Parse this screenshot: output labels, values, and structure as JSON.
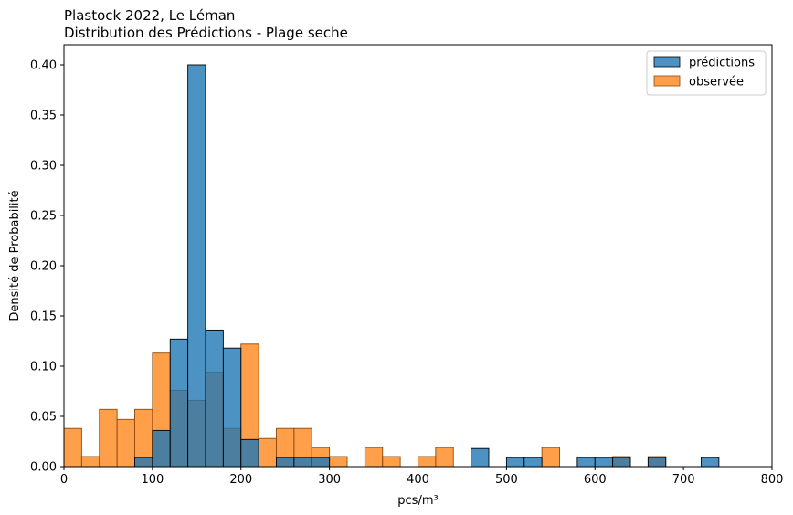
{
  "chart_data": {
    "type": "bar",
    "title": "Plastock 2022, Le Léman",
    "subtitle": "Distribution des Prédictions - Plage seche",
    "xlabel": "pcs/m³",
    "ylabel": "Densité de Probabilité",
    "xlim": [
      0,
      800
    ],
    "ylim": [
      0,
      0.42
    ],
    "x_ticks": [
      "0",
      "100",
      "200",
      "300",
      "400",
      "500",
      "600",
      "700",
      "800"
    ],
    "y_ticks": [
      "0.00",
      "0.05",
      "0.10",
      "0.15",
      "0.20",
      "0.25",
      "0.30",
      "0.35",
      "0.40"
    ],
    "grid": false,
    "legend_position": "top-right",
    "bin_width": 20,
    "series": [
      {
        "name": "observée",
        "color": "#ff7f0e",
        "bins": [
          {
            "x0": 0,
            "value": 0.038
          },
          {
            "x0": 20,
            "value": 0.01
          },
          {
            "x0": 40,
            "value": 0.057
          },
          {
            "x0": 60,
            "value": 0.047
          },
          {
            "x0": 80,
            "value": 0.057
          },
          {
            "x0": 100,
            "value": 0.113
          },
          {
            "x0": 120,
            "value": 0.076
          },
          {
            "x0": 140,
            "value": 0.066
          },
          {
            "x0": 160,
            "value": 0.094
          },
          {
            "x0": 180,
            "value": 0.038
          },
          {
            "x0": 200,
            "value": 0.122
          },
          {
            "x0": 220,
            "value": 0.028
          },
          {
            "x0": 240,
            "value": 0.038
          },
          {
            "x0": 260,
            "value": 0.038
          },
          {
            "x0": 280,
            "value": 0.019
          },
          {
            "x0": 300,
            "value": 0.01
          },
          {
            "x0": 340,
            "value": 0.019
          },
          {
            "x0": 360,
            "value": 0.01
          },
          {
            "x0": 400,
            "value": 0.01
          },
          {
            "x0": 420,
            "value": 0.019
          },
          {
            "x0": 540,
            "value": 0.019
          },
          {
            "x0": 620,
            "value": 0.01
          },
          {
            "x0": 660,
            "value": 0.01
          }
        ]
      },
      {
        "name": "prédictions",
        "color": "#1f77b4",
        "bins": [
          {
            "x0": 80,
            "value": 0.009
          },
          {
            "x0": 100,
            "value": 0.036
          },
          {
            "x0": 120,
            "value": 0.127
          },
          {
            "x0": 140,
            "value": 0.4
          },
          {
            "x0": 160,
            "value": 0.136
          },
          {
            "x0": 180,
            "value": 0.118
          },
          {
            "x0": 200,
            "value": 0.027
          },
          {
            "x0": 240,
            "value": 0.009
          },
          {
            "x0": 260,
            "value": 0.009
          },
          {
            "x0": 280,
            "value": 0.009
          },
          {
            "x0": 460,
            "value": 0.018
          },
          {
            "x0": 500,
            "value": 0.009
          },
          {
            "x0": 520,
            "value": 0.009
          },
          {
            "x0": 580,
            "value": 0.009
          },
          {
            "x0": 600,
            "value": 0.009
          },
          {
            "x0": 620,
            "value": 0.009
          },
          {
            "x0": 660,
            "value": 0.009
          },
          {
            "x0": 720,
            "value": 0.009
          }
        ]
      }
    ]
  }
}
